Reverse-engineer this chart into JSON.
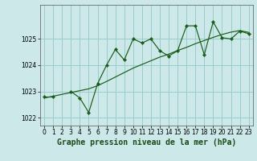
{
  "title": "Graphe pression niveau de la mer (hPa)",
  "bg_color": "#cce8e8",
  "grid_color": "#99cccc",
  "line_color": "#1a5c1a",
  "x_values": [
    0,
    1,
    2,
    3,
    4,
    5,
    6,
    7,
    8,
    9,
    10,
    11,
    12,
    13,
    14,
    15,
    16,
    17,
    18,
    19,
    20,
    21,
    22,
    23
  ],
  "y_main": [
    1022.8,
    1022.8,
    null,
    1023.0,
    1022.75,
    1022.2,
    1023.3,
    1024.0,
    1024.6,
    1024.2,
    1025.0,
    1024.85,
    1025.0,
    1024.55,
    1024.35,
    1024.55,
    1025.5,
    1025.5,
    1024.4,
    1025.65,
    1025.05,
    1025.0,
    1025.3,
    1025.2
  ],
  "y_trend": [
    1022.75,
    1022.82,
    1022.89,
    1022.96,
    1023.03,
    1023.1,
    1023.22,
    1023.38,
    1023.55,
    1023.72,
    1023.89,
    1024.03,
    1024.17,
    1024.31,
    1024.42,
    1024.56,
    1024.68,
    1024.82,
    1024.94,
    1025.06,
    1025.17,
    1025.26,
    1025.32,
    1025.25
  ],
  "ylim": [
    1021.7,
    1026.3
  ],
  "yticks": [
    1022,
    1023,
    1024,
    1025
  ],
  "xlim": [
    -0.5,
    23.5
  ],
  "xticks": [
    0,
    1,
    2,
    3,
    4,
    5,
    6,
    7,
    8,
    9,
    10,
    11,
    12,
    13,
    14,
    15,
    16,
    17,
    18,
    19,
    20,
    21,
    22,
    23
  ],
  "title_fontsize": 7.0,
  "tick_fontsize": 5.5,
  "marker_size": 2.2
}
